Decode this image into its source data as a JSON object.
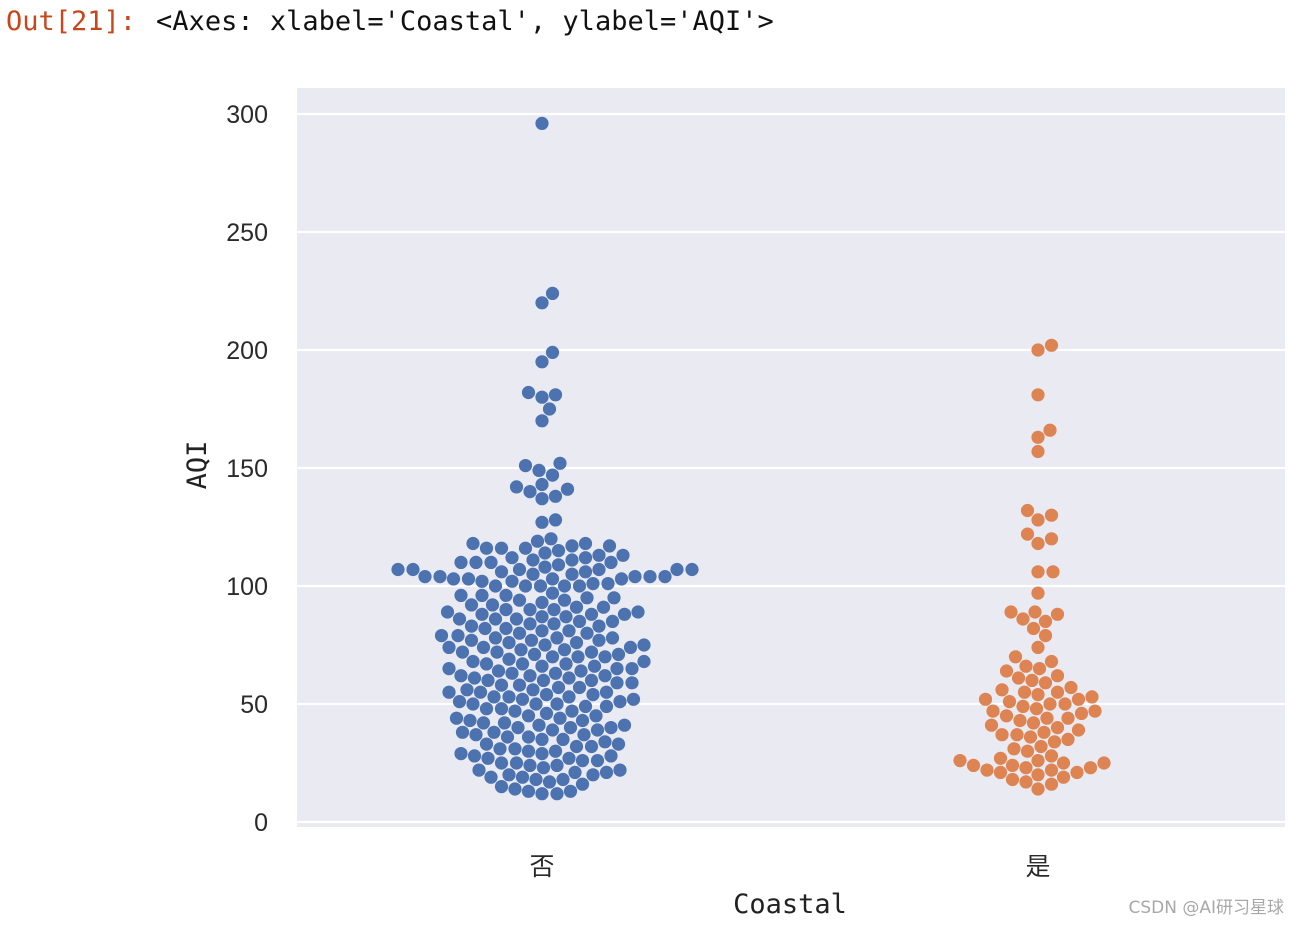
{
  "output": {
    "prompt": "Out[21]:",
    "text": "<Axes: xlabel='Coastal', ylabel='AQI'>"
  },
  "watermark": "CSDN @AI研习星球",
  "colors": {
    "background": "#eaeaf2",
    "grid": "#ffffff",
    "series_no": "#4c72b0",
    "series_yes": "#dd8452"
  },
  "chart_data": {
    "type": "scatter",
    "style": "swarm",
    "xlabel": "Coastal",
    "ylabel": "AQI",
    "categories": [
      "否",
      "是"
    ],
    "ylim": [
      0,
      300
    ],
    "yticks": [
      0,
      50,
      100,
      150,
      200,
      250,
      300
    ],
    "grid": true,
    "series": [
      {
        "category": "否",
        "color": "#4c72b0",
        "values": [
          296,
          224,
          220,
          199,
          195,
          182,
          181,
          180,
          175,
          170,
          152,
          151,
          149,
          147,
          143,
          142,
          141,
          140,
          138,
          137,
          128,
          127,
          120,
          119,
          118,
          118,
          117,
          117,
          116,
          116,
          116,
          115,
          114,
          113,
          113,
          112,
          112,
          111,
          111,
          110,
          110,
          110,
          110,
          109,
          108,
          107,
          107,
          107,
          107,
          107,
          107,
          106,
          106,
          105,
          105,
          104,
          104,
          104,
          104,
          104,
          103,
          103,
          103,
          103,
          102,
          102,
          101,
          101,
          100,
          100,
          100,
          100,
          100,
          97,
          96,
          96,
          96,
          95,
          95,
          94,
          94,
          93,
          92,
          92,
          91,
          91,
          90,
          90,
          90,
          89,
          89,
          88,
          88,
          88,
          87,
          87,
          86,
          86,
          86,
          85,
          85,
          84,
          84,
          83,
          83,
          82,
          82,
          81,
          81,
          80,
          80,
          79,
          79,
          78,
          78,
          78,
          77,
          77,
          77,
          76,
          76,
          75,
          75,
          74,
          74,
          74,
          73,
          73,
          72,
          72,
          72,
          71,
          71,
          70,
          70,
          70,
          69,
          68,
          68,
          67,
          67,
          67,
          66,
          66,
          65,
          65,
          65,
          64,
          64,
          63,
          63,
          62,
          62,
          62,
          61,
          61,
          60,
          60,
          60,
          59,
          59,
          58,
          58,
          57,
          57,
          56,
          56,
          55,
          55,
          55,
          54,
          54,
          53,
          53,
          53,
          52,
          52,
          51,
          51,
          50,
          50,
          50,
          49,
          49,
          48,
          48,
          47,
          47,
          46,
          45,
          45,
          44,
          44,
          43,
          43,
          42,
          42,
          41,
          41,
          40,
          40,
          40,
          39,
          39,
          38,
          38,
          37,
          37,
          36,
          36,
          35,
          35,
          34,
          33,
          33,
          32,
          32,
          31,
          31,
          30,
          30,
          29,
          29,
          28,
          28,
          27,
          27,
          26,
          26,
          25,
          25,
          24,
          24,
          23,
          22,
          22,
          21,
          21,
          20,
          20,
          19,
          19,
          18,
          18,
          17,
          16,
          15,
          14,
          13,
          13,
          12,
          12
        ]
      },
      {
        "category": "是",
        "color": "#dd8452",
        "values": [
          202,
          200,
          181,
          166,
          163,
          157,
          132,
          130,
          128,
          122,
          120,
          118,
          106,
          106,
          97,
          89,
          89,
          88,
          86,
          85,
          82,
          79,
          74,
          70,
          68,
          66,
          65,
          64,
          62,
          61,
          60,
          59,
          57,
          56,
          55,
          55,
          54,
          53,
          52,
          52,
          51,
          50,
          50,
          49,
          48,
          47,
          47,
          46,
          45,
          44,
          44,
          43,
          42,
          41,
          40,
          39,
          38,
          37,
          37,
          36,
          35,
          34,
          32,
          31,
          30,
          28,
          27,
          26,
          26,
          25,
          25,
          24,
          24,
          23,
          23,
          22,
          22,
          21,
          21,
          20,
          19,
          18,
          17,
          16,
          14
        ]
      }
    ]
  }
}
